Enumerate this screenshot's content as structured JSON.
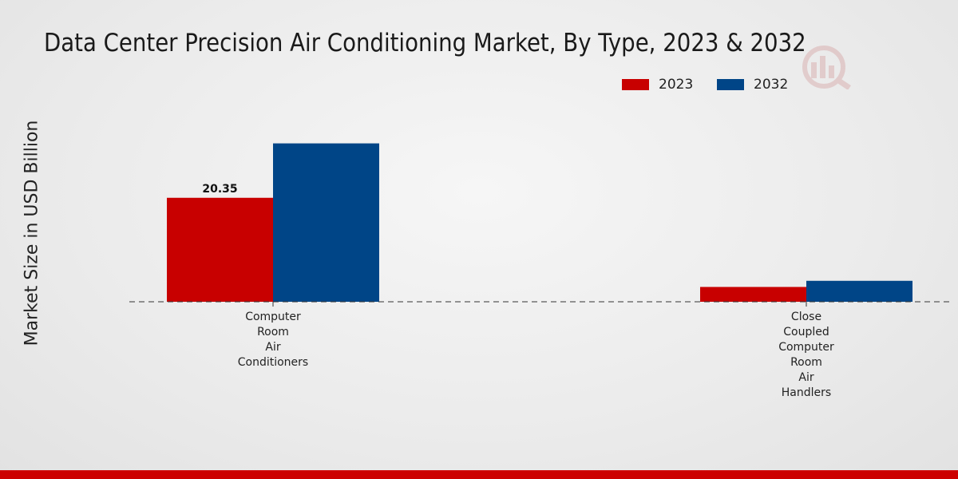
{
  "chart_data": {
    "type": "bar",
    "title": "Data Center Precision Air Conditioning Market, By Type, 2023 & 2032",
    "ylabel": "Market Size in USD Billion",
    "xlabel": "",
    "categories": [
      "Computer Room Air Conditioners",
      "Close Coupled Computer Room Air Handlers"
    ],
    "category_lines": [
      [
        "Computer",
        "Room",
        "Air",
        "Conditioners"
      ],
      [
        "Close",
        "Coupled",
        "Computer",
        "Room",
        "Air",
        "Handlers"
      ]
    ],
    "series": [
      {
        "name": "2023",
        "color": "#c80000",
        "values": [
          20.35,
          2.9
        ]
      },
      {
        "name": "2032",
        "color": "#004587",
        "values": [
          31.0,
          4.1
        ]
      }
    ],
    "data_labels": [
      {
        "series": 0,
        "category": 0,
        "text": "20.35"
      }
    ],
    "ylim": [
      0,
      45
    ],
    "grid": false,
    "legend_position": "top-right",
    "baseline_style": "dashed"
  },
  "legend": {
    "items": [
      "2023",
      "2032"
    ]
  },
  "colors": {
    "accent_bar": "#cc0000"
  }
}
